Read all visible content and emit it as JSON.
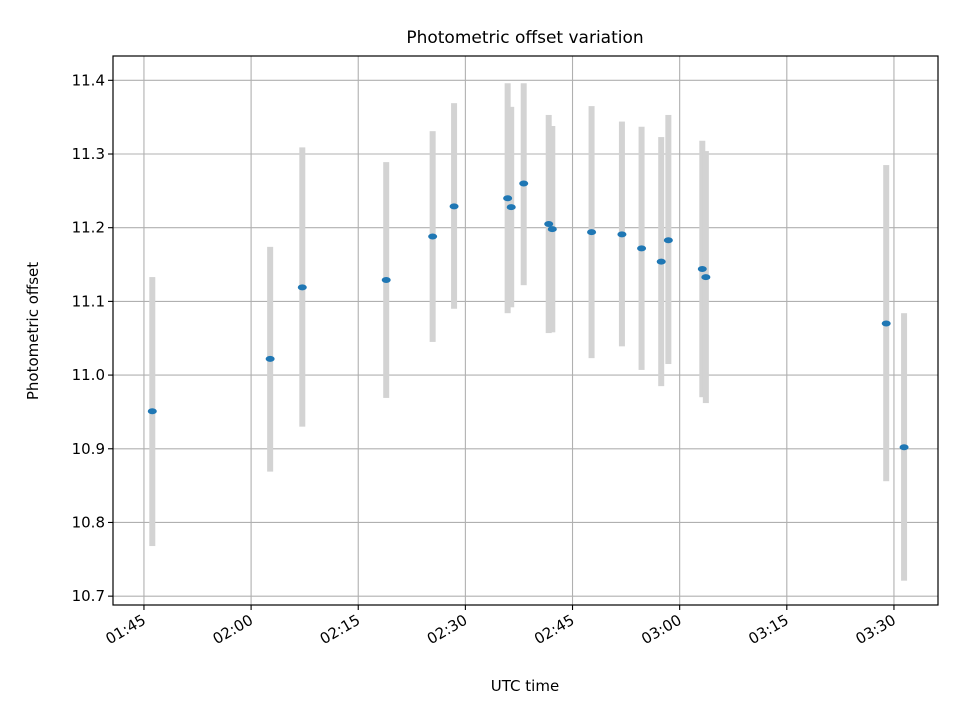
{
  "chart_data": {
    "type": "scatter",
    "title": "Photometric offset variation",
    "xlabel": "UTC time",
    "ylabel": "Photometric offset",
    "x_ticks": [
      "01:45",
      "02:00",
      "02:15",
      "02:30",
      "02:45",
      "03:00",
      "03:15",
      "03:30"
    ],
    "y_ticks": [
      "10.7",
      "10.8",
      "10.9",
      "11.0",
      "11.1",
      "11.2",
      "11.3",
      "11.4"
    ],
    "xlim": [
      "01:40:40",
      "03:36:10"
    ],
    "ylim": [
      10.688,
      11.433
    ],
    "grid": true,
    "legend": "none",
    "error_bar_color": "#d3d3d3",
    "point_color": "#1f77b4",
    "series": [
      {
        "points": [
          {
            "x": "01:46:10",
            "y": 10.951,
            "ymin": 10.768,
            "ymax": 11.133
          },
          {
            "x": "02:02:40",
            "y": 11.022,
            "ymin": 10.869,
            "ymax": 11.174
          },
          {
            "x": "02:07:10",
            "y": 11.119,
            "ymin": 10.93,
            "ymax": 11.309
          },
          {
            "x": "02:18:55",
            "y": 11.129,
            "ymin": 10.969,
            "ymax": 11.289
          },
          {
            "x": "02:25:25",
            "y": 11.188,
            "ymin": 11.045,
            "ymax": 11.331
          },
          {
            "x": "02:28:25",
            "y": 11.229,
            "ymin": 11.09,
            "ymax": 11.369
          },
          {
            "x": "02:35:55",
            "y": 11.24,
            "ymin": 11.084,
            "ymax": 11.396
          },
          {
            "x": "02:36:25",
            "y": 11.228,
            "ymin": 11.092,
            "ymax": 11.364
          },
          {
            "x": "02:38:10",
            "y": 11.26,
            "ymin": 11.122,
            "ymax": 11.396
          },
          {
            "x": "02:41:40",
            "y": 11.205,
            "ymin": 11.057,
            "ymax": 11.353
          },
          {
            "x": "02:42:10",
            "y": 11.198,
            "ymin": 11.058,
            "ymax": 11.338
          },
          {
            "x": "02:47:40",
            "y": 11.194,
            "ymin": 11.023,
            "ymax": 11.365
          },
          {
            "x": "02:51:55",
            "y": 11.191,
            "ymin": 11.039,
            "ymax": 11.344
          },
          {
            "x": "02:54:40",
            "y": 11.172,
            "ymin": 11.007,
            "ymax": 11.337
          },
          {
            "x": "02:57:25",
            "y": 11.154,
            "ymin": 10.985,
            "ymax": 11.323
          },
          {
            "x": "02:58:25",
            "y": 11.183,
            "ymin": 11.015,
            "ymax": 11.353
          },
          {
            "x": "03:03:10",
            "y": 11.144,
            "ymin": 10.97,
            "ymax": 11.318
          },
          {
            "x": "03:03:40",
            "y": 11.133,
            "ymin": 10.962,
            "ymax": 11.304
          },
          {
            "x": "03:28:55",
            "y": 11.07,
            "ymin": 10.856,
            "ymax": 11.285
          },
          {
            "x": "03:31:25",
            "y": 10.902,
            "ymin": 10.721,
            "ymax": 11.084
          }
        ]
      }
    ]
  }
}
